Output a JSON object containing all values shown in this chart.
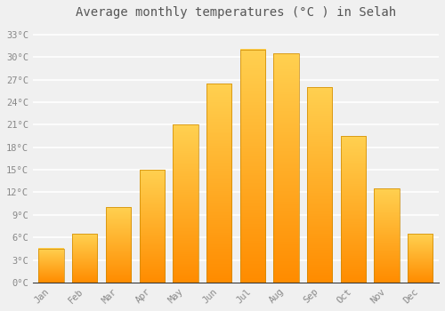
{
  "title": "Average monthly temperatures (°C ) in Selah",
  "months": [
    "Jan",
    "Feb",
    "Mar",
    "Apr",
    "May",
    "Jun",
    "Jul",
    "Aug",
    "Sep",
    "Oct",
    "Nov",
    "Dec"
  ],
  "values": [
    4.5,
    6.5,
    10.0,
    15.0,
    21.0,
    26.5,
    31.0,
    30.5,
    26.0,
    19.5,
    12.5,
    6.5
  ],
  "bar_color": "#FFA500",
  "bar_edge_color": "#CC8800",
  "background_color": "#f0f0f0",
  "grid_color": "#ffffff",
  "yticks": [
    0,
    3,
    6,
    9,
    12,
    15,
    18,
    21,
    24,
    27,
    30,
    33
  ],
  "ylim": [
    0,
    34.5
  ],
  "tick_label_color": "#888888",
  "title_color": "#555555",
  "title_fontsize": 10,
  "tick_fontsize": 7.5,
  "font_family": "monospace",
  "bar_width": 0.75
}
